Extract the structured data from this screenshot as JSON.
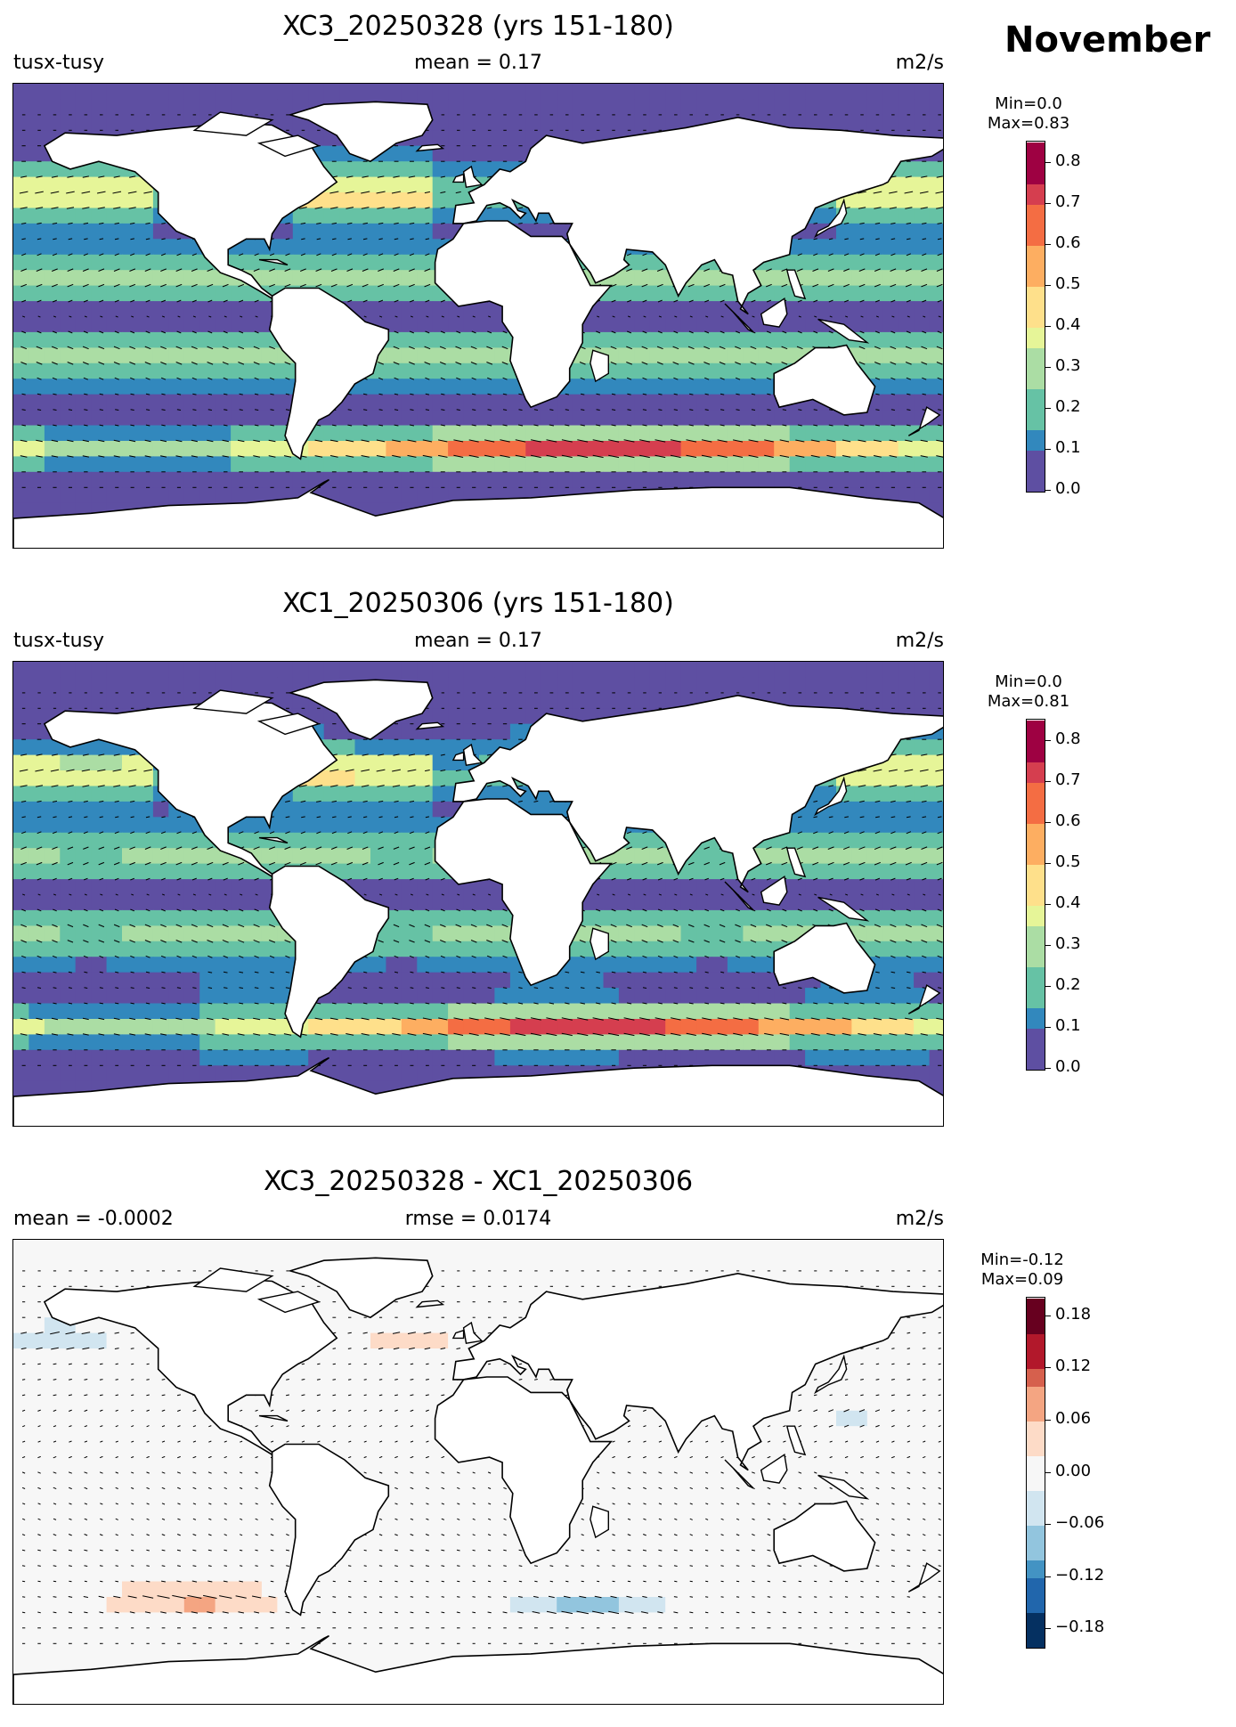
{
  "month": "November",
  "panels": [
    {
      "title": "XC3_20250328 (yrs 151-180)",
      "left_label": "tusx-tusy",
      "mid_label": "mean = 0.17",
      "right_label": "m2/s",
      "min_label": "Min=0.0",
      "max_label": "Max=0.83",
      "colormap": "Spectral_r"
    },
    {
      "title": "XC1_20250306 (yrs 151-180)",
      "left_label": "tusx-tusy",
      "mid_label": "mean = 0.17",
      "right_label": "m2/s",
      "min_label": "Min=0.0",
      "max_label": "Max=0.81",
      "colormap": "Spectral_r"
    },
    {
      "title": "XC3_20250328 - XC1_20250306",
      "left_label": "mean = -0.0002",
      "mid_label": "rmse = 0.0174",
      "right_label": "m2/s",
      "min_label": "Min=-0.12",
      "max_label": "Max=0.09",
      "colormap": "RdBu_r"
    }
  ],
  "chart_data": [
    {
      "type": "heatmap",
      "title": "XC3_20250328 (yrs 151-180)",
      "variable": "tusx-tusy",
      "units": "m2/s",
      "mean": 0.17,
      "min": 0.0,
      "max": 0.83,
      "colorbar_ticks": [
        "0.0",
        "0.1",
        "0.2",
        "0.3",
        "0.4",
        "0.5",
        "0.6",
        "0.7",
        "0.8"
      ],
      "colorbar_range": [
        0.0,
        0.85
      ]
    },
    {
      "type": "heatmap",
      "title": "XC1_20250306 (yrs 151-180)",
      "variable": "tusx-tusy",
      "units": "m2/s",
      "mean": 0.17,
      "min": 0.0,
      "max": 0.81,
      "colorbar_ticks": [
        "0.0",
        "0.1",
        "0.2",
        "0.3",
        "0.4",
        "0.5",
        "0.6",
        "0.7",
        "0.8"
      ],
      "colorbar_range": [
        0.0,
        0.85
      ]
    },
    {
      "type": "heatmap",
      "title": "XC3_20250328 - XC1_20250306",
      "units": "m2/s",
      "mean": -0.0002,
      "rmse": 0.0174,
      "min": -0.12,
      "max": 0.09,
      "colorbar_ticks": [
        "−0.18",
        "−0.12",
        "−0.06",
        "0.00",
        "0.06",
        "0.12",
        "0.18"
      ],
      "colorbar_range": [
        -0.2,
        0.2
      ]
    }
  ]
}
